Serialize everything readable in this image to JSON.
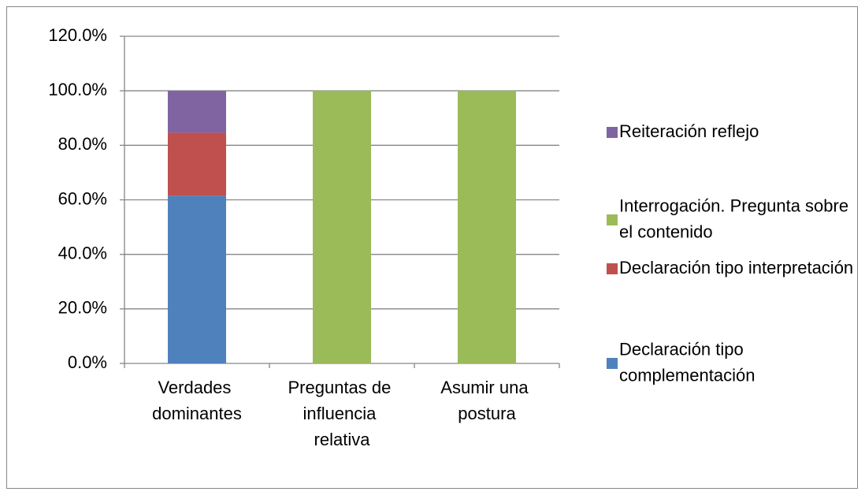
{
  "chart_data": {
    "type": "stacked_bar",
    "categories": [
      "Verdades dominantes",
      "Preguntas de influencia relativa",
      "Asumir una postura"
    ],
    "series": [
      {
        "name": "Declaración tipo complementación",
        "color": "#4f81bd",
        "values": [
          61.5,
          0,
          0
        ]
      },
      {
        "name": "Declaración tipo interpretación",
        "color": "#c0504d",
        "values": [
          23.1,
          0,
          0
        ]
      },
      {
        "name": "Interrogación. Pregunta sobre el contenido",
        "color": "#9bbb59",
        "values": [
          0,
          100,
          100
        ]
      },
      {
        "name": "Reiteración reflejo",
        "color": "#8064a2",
        "values": [
          15.4,
          0,
          0
        ]
      }
    ],
    "ylim": [
      0,
      120
    ],
    "yticks": [
      {
        "value": 0,
        "label": "0.0%"
      },
      {
        "value": 20,
        "label": "20.0%"
      },
      {
        "value": 40,
        "label": "40.0%"
      },
      {
        "value": 60,
        "label": "60.0%"
      },
      {
        "value": 80,
        "label": "80.0%"
      },
      {
        "value": 100,
        "label": "100.0%"
      },
      {
        "value": 120,
        "label": "120.0%"
      }
    ],
    "grid": true,
    "legend": "right"
  }
}
